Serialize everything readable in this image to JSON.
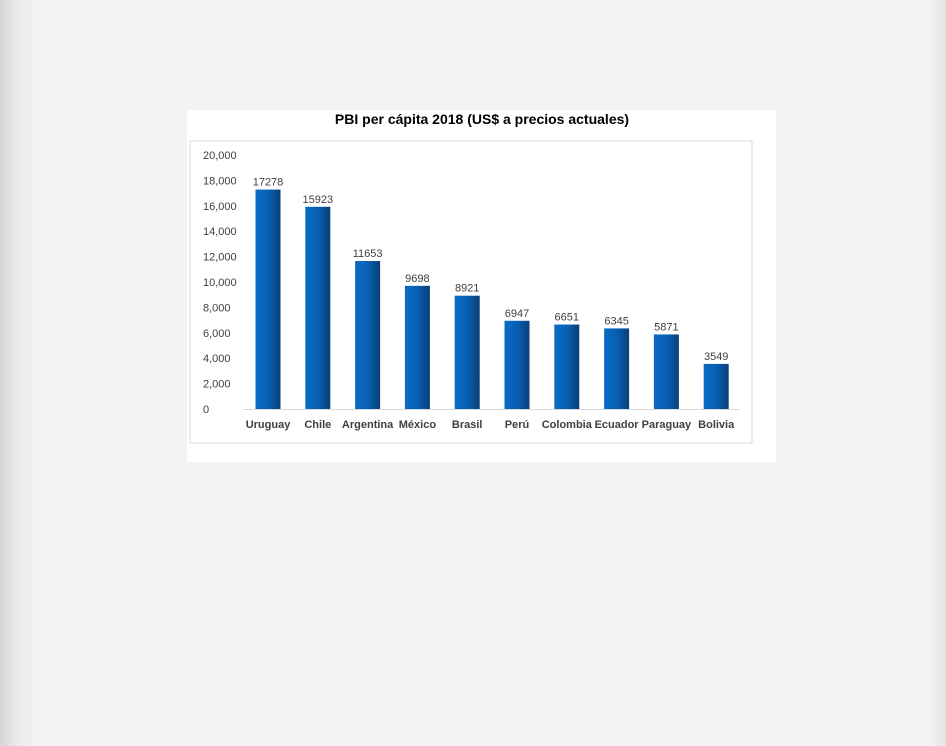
{
  "chart_data": {
    "type": "bar",
    "title": "PBI per cápita 2018 (US$ a precios actuales)",
    "xlabel": "",
    "ylabel": "",
    "ylim": [
      0,
      20000
    ],
    "yticks": [
      "0",
      "2,000",
      "4,000",
      "6,000",
      "8,000",
      "10,000",
      "12,000",
      "14,000",
      "16,000",
      "18,000",
      "20,000"
    ],
    "categories": [
      "Uruguay",
      "Chile",
      "Argentina",
      "México",
      "Brasil",
      "Perú",
      "Colombia",
      "Ecuador",
      "Paraguay",
      "Bolivia"
    ],
    "values": [
      17278,
      15923,
      11653,
      9698,
      8921,
      6947,
      6651,
      6345,
      5871,
      3549
    ],
    "grid": false,
    "legend": "none",
    "colors": {
      "bar_light": "#0a6cc4",
      "bar_dark": "#0b3f78"
    }
  }
}
